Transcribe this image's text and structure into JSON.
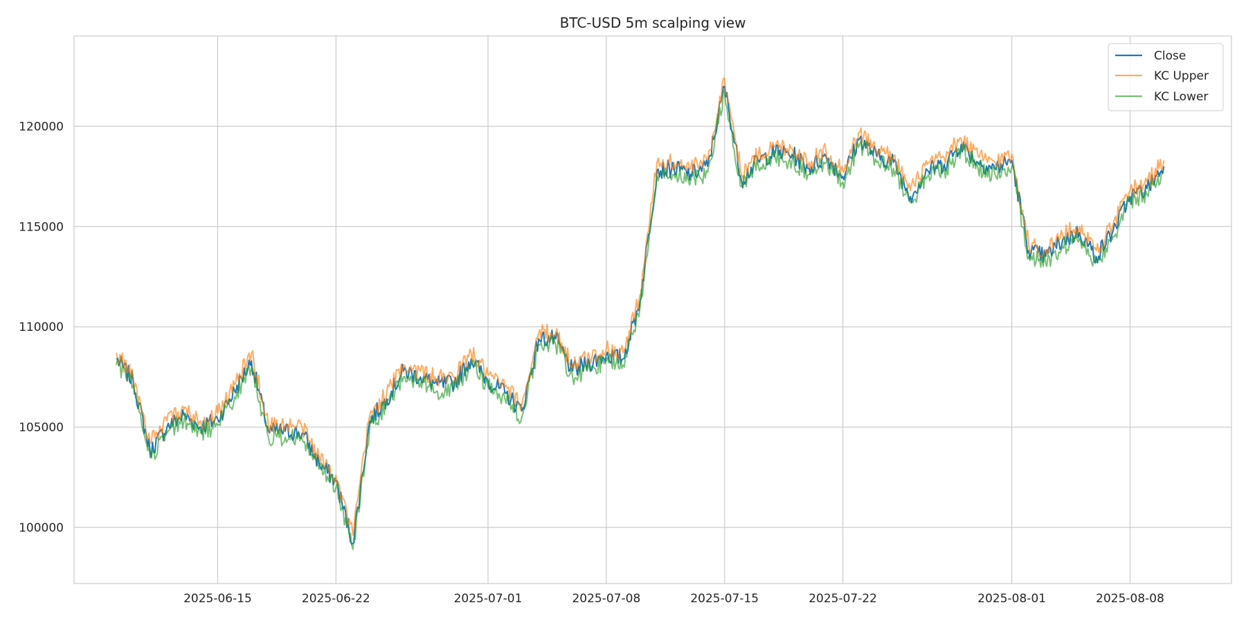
{
  "chart_data": {
    "type": "line",
    "title": "BTC-USD 5m scalping view",
    "xlabel": "",
    "ylabel": "",
    "x_axis": {
      "kind": "date",
      "range": [
        "2025-06-06T12:00",
        "2025-08-14T00:00"
      ],
      "ticks": [
        "2025-06-15",
        "2025-06-22",
        "2025-07-01",
        "2025-07-08",
        "2025-07-15",
        "2025-07-22",
        "2025-08-01",
        "2025-08-08"
      ]
    },
    "y_axis": {
      "range": [
        97200,
        124500
      ],
      "ticks": [
        100000,
        105000,
        110000,
        115000,
        120000
      ]
    },
    "grid": true,
    "legend": {
      "placement": "top-right"
    },
    "colors": {
      "close": "#1f77b4",
      "kc_upper": "#ff7f0e",
      "kc_lower": "#2ca02c",
      "grid": "#cccccc",
      "axes": "#cccccc"
    },
    "x": [
      "2025-06-09",
      "2025-06-10",
      "2025-06-11",
      "2025-06-12",
      "2025-06-13",
      "2025-06-14",
      "2025-06-15",
      "2025-06-16",
      "2025-06-17",
      "2025-06-18",
      "2025-06-19",
      "2025-06-20",
      "2025-06-21",
      "2025-06-22",
      "2025-06-23",
      "2025-06-24",
      "2025-06-25",
      "2025-06-26",
      "2025-06-27",
      "2025-06-28",
      "2025-06-29",
      "2025-06-30",
      "2025-07-01",
      "2025-07-02",
      "2025-07-03",
      "2025-07-04",
      "2025-07-05",
      "2025-07-06",
      "2025-07-07",
      "2025-07-08",
      "2025-07-09",
      "2025-07-10",
      "2025-07-11",
      "2025-07-12",
      "2025-07-13",
      "2025-07-14",
      "2025-07-15",
      "2025-07-16",
      "2025-07-17",
      "2025-07-18",
      "2025-07-19",
      "2025-07-20",
      "2025-07-21",
      "2025-07-22",
      "2025-07-23",
      "2025-07-24",
      "2025-07-25",
      "2025-07-26",
      "2025-07-27",
      "2025-07-28",
      "2025-07-29",
      "2025-07-30",
      "2025-07-31",
      "2025-08-01",
      "2025-08-02",
      "2025-08-03",
      "2025-08-04",
      "2025-08-05",
      "2025-08-06",
      "2025-08-07",
      "2025-08-08",
      "2025-08-09",
      "2025-08-10"
    ],
    "series": [
      {
        "name": "Close",
        "values": [
          108400,
          107300,
          103800,
          105000,
          105600,
          105000,
          105400,
          106800,
          108300,
          104800,
          104800,
          104700,
          103200,
          102300,
          99200,
          105300,
          106400,
          107800,
          107500,
          107100,
          107200,
          108400,
          107300,
          106700,
          105800,
          109400,
          109400,
          107800,
          108200,
          108600,
          108400,
          111300,
          117800,
          117900,
          117600,
          118000,
          122000,
          117300,
          118300,
          118700,
          118600,
          117900,
          118500,
          117500,
          119400,
          118500,
          118200,
          116500,
          117800,
          118100,
          119100,
          118200,
          117900,
          118300,
          113800,
          113500,
          114300,
          114700,
          113500,
          114800,
          116500,
          116900,
          118000
        ]
      },
      {
        "name": "KC Upper",
        "values": [
          108700,
          107500,
          104200,
          105300,
          105900,
          105300,
          105700,
          107100,
          108700,
          105100,
          105100,
          105000,
          103500,
          102600,
          99600,
          105600,
          106700,
          108100,
          107800,
          107400,
          107500,
          108700,
          107600,
          107000,
          106100,
          109700,
          109700,
          108100,
          108500,
          108900,
          108700,
          111600,
          118200,
          118200,
          117900,
          118300,
          122400,
          117600,
          118600,
          119000,
          118900,
          118200,
          118800,
          117800,
          119700,
          118800,
          118500,
          116800,
          118100,
          118400,
          119400,
          118500,
          118200,
          118600,
          114100,
          113800,
          114600,
          115000,
          113800,
          115100,
          116800,
          117200,
          118300
        ]
      },
      {
        "name": "KC Lower",
        "values": [
          108100,
          107100,
          103500,
          104700,
          105300,
          104700,
          105100,
          106500,
          108000,
          104500,
          104500,
          104400,
          102900,
          102000,
          98900,
          105000,
          106100,
          107500,
          107200,
          106800,
          106900,
          108100,
          107000,
          106400,
          105500,
          109100,
          109100,
          107500,
          107900,
          108300,
          108100,
          111000,
          117500,
          117600,
          117300,
          117700,
          121700,
          117000,
          118000,
          118400,
          118300,
          117600,
          118200,
          117200,
          119100,
          118200,
          117900,
          116200,
          117500,
          117800,
          118800,
          117900,
          117600,
          118000,
          113500,
          113200,
          114000,
          114400,
          113200,
          114500,
          116200,
          116600,
          117700
        ]
      }
    ]
  }
}
